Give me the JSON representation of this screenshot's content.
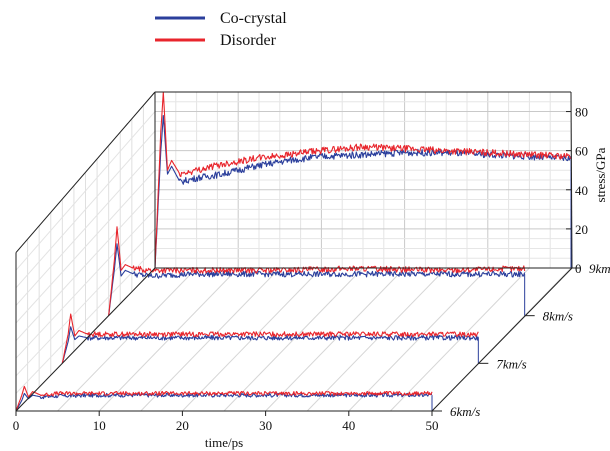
{
  "chart_data": {
    "type": "line",
    "projection": "3d-waterfall",
    "xlabel": "time/ps",
    "zlabel": "stress/GPa",
    "xticks": [
      "0",
      "10",
      "20",
      "30",
      "40",
      "50"
    ],
    "zticks": [
      "0",
      "20",
      "40",
      "60",
      "80"
    ],
    "xlim": [
      0,
      50
    ],
    "zlim": [
      0,
      90
    ],
    "grid": true,
    "legend_position": "top-left",
    "legend": [
      {
        "name": "Co-crystal",
        "color": "#2b3f9c"
      },
      {
        "name": "Disorder",
        "color": "#e8252c"
      }
    ],
    "panels": [
      {
        "label": "6km/s",
        "series": [
          {
            "name": "Co-crystal",
            "x": [
              0,
              0.7,
              1,
              1.5,
              2,
              3,
              5,
              10,
              20,
              30,
              40,
              50
            ],
            "y": [
              0,
              6,
              10,
              7,
              9,
              8,
              8.5,
              9,
              9,
              9,
              9,
              9
            ]
          },
          {
            "name": "Disorder",
            "x": [
              0,
              0.7,
              1,
              1.5,
              2,
              3,
              5,
              10,
              20,
              30,
              40,
              50
            ],
            "y": [
              0,
              9,
              14,
              8,
              11,
              9,
              10,
              10,
              10,
              10,
              10,
              10
            ]
          }
        ]
      },
      {
        "label": "7km/s",
        "series": [
          {
            "name": "Co-crystal",
            "x": [
              0,
              0.7,
              1,
              1.5,
              2,
              3,
              5,
              10,
              20,
              30,
              40,
              50
            ],
            "y": [
              0,
              12,
              20,
              13,
              15,
              14,
              14,
              14,
              14,
              14,
              14,
              14
            ]
          },
          {
            "name": "Disorder",
            "x": [
              0,
              0.7,
              1,
              1.5,
              2,
              3,
              5,
              10,
              20,
              30,
              40,
              50
            ],
            "y": [
              0,
              16,
              27,
              15,
              18,
              16,
              16,
              16,
              16,
              16,
              16,
              16
            ]
          }
        ]
      },
      {
        "label": "8km/s",
        "series": [
          {
            "name": "Co-crystal",
            "x": [
              0,
              0.7,
              1,
              1.5,
              2,
              3,
              5,
              10,
              20,
              30,
              40,
              50
            ],
            "y": [
              0,
              25,
              38,
              21,
              24,
              22,
              21,
              22,
              22,
              22,
              22,
              22
            ]
          },
          {
            "name": "Disorder",
            "x": [
              0,
              0.7,
              1,
              1.5,
              2,
              3,
              5,
              10,
              20,
              30,
              40,
              50
            ],
            "y": [
              0,
              30,
              47,
              24,
              27,
              25,
              24,
              24,
              24,
              25,
              24,
              25
            ]
          }
        ]
      },
      {
        "label": "9km/s",
        "series": [
          {
            "name": "Co-crystal",
            "x": [
              0,
              0.7,
              1,
              1.5,
              2,
              3,
              5,
              8,
              12,
              16,
              20,
              25,
              30,
              35,
              40,
              45,
              50
            ],
            "y": [
              0,
              60,
              78,
              48,
              52,
              44,
              46,
              48,
              52,
              55,
              57,
              58,
              59,
              59,
              58,
              57,
              56
            ]
          },
          {
            "name": "Disorder",
            "x": [
              0,
              0.7,
              1,
              1.5,
              2,
              3,
              5,
              8,
              12,
              16,
              20,
              25,
              30,
              35,
              40,
              45,
              50
            ],
            "y": [
              0,
              70,
              90,
              50,
              55,
              48,
              50,
              53,
              56,
              58,
              60,
              62,
              61,
              60,
              59,
              58,
              57
            ]
          }
        ]
      }
    ]
  }
}
